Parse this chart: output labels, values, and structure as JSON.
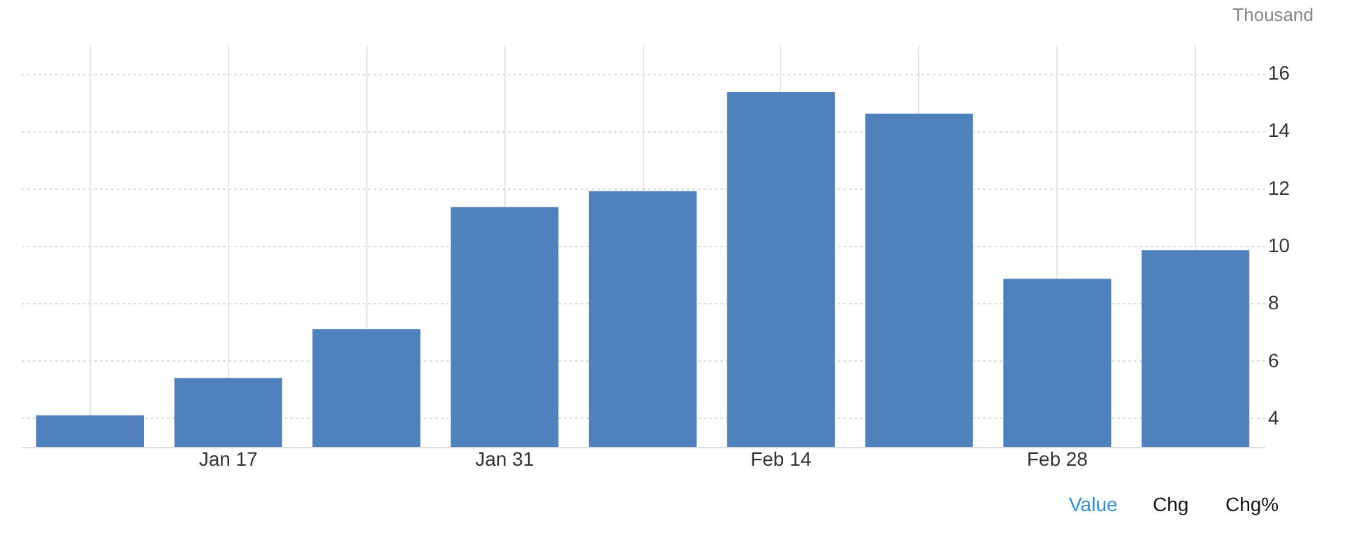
{
  "chart_data": {
    "type": "bar",
    "ylabel": "Thousand",
    "categories": [
      null,
      "Jan 17",
      null,
      "Jan 31",
      null,
      "Feb 14",
      null,
      "Feb 28",
      null
    ],
    "series": [
      {
        "color": "#4f81bd",
        "values": [
          4.1,
          5.4,
          7.1,
          11.35,
          11.9,
          15.35,
          14.6,
          8.85,
          9.85
        ]
      }
    ],
    "ylim": [
      3,
      17
    ],
    "yticks": [
      4,
      6,
      8,
      10,
      12,
      14,
      16
    ],
    "grid": true,
    "annotations": [
      "Value",
      "Chg",
      "Chg%"
    ]
  }
}
